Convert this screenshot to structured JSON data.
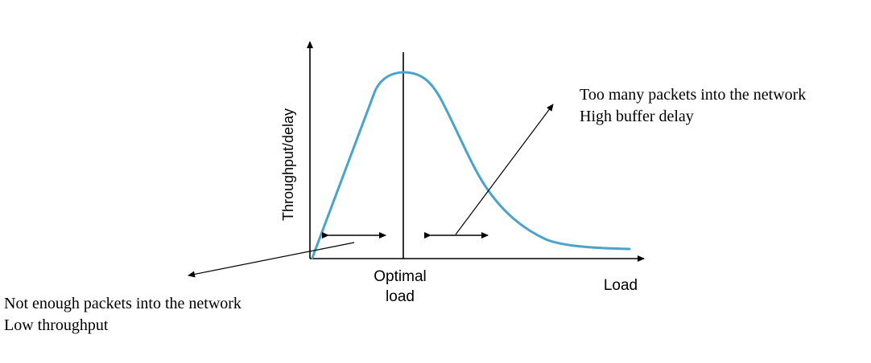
{
  "diagram": {
    "y_axis_label": "Throughput/delay",
    "x_axis_label": "Load",
    "optimal_label_line1": "Optimal",
    "optimal_label_line2": "load",
    "right_annotation_line1": "Too many packets into the network",
    "right_annotation_line2": "High buffer delay",
    "left_annotation_line1": "Not enough packets into the network",
    "left_annotation_line2": "Low throughput",
    "curve_color": "#4aa3c8",
    "line_color": "#000000"
  }
}
